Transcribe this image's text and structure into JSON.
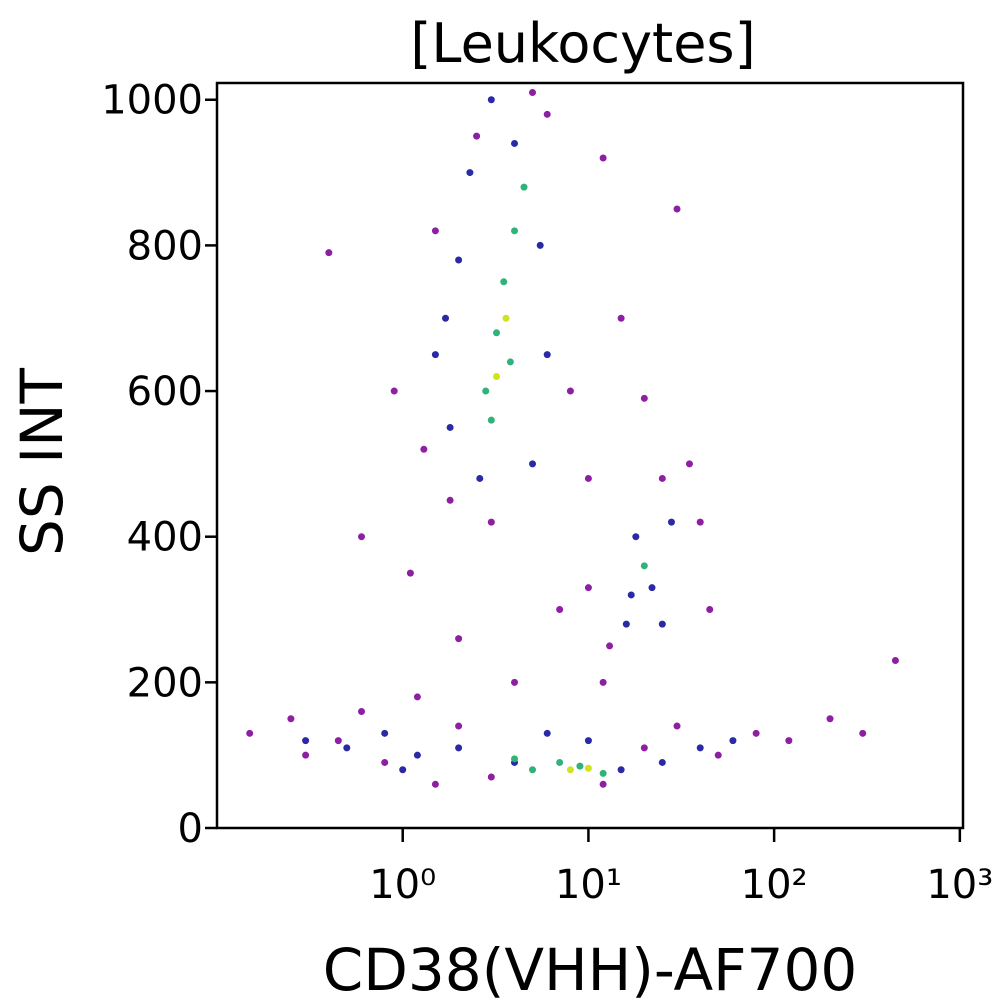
{
  "chart_data": {
    "type": "scatter",
    "title": "[Leukocytes]",
    "x_label": "CD38(VHH)-AF700",
    "y_label": "SS INT",
    "x_scale": "log",
    "xlim": [
      0.1,
      1040
    ],
    "ylim": [
      0,
      1023
    ],
    "xticks": [
      {
        "value": 1,
        "label": "10⁰"
      },
      {
        "value": 10,
        "label": "10¹"
      },
      {
        "value": 100,
        "label": "10²"
      },
      {
        "value": 1000,
        "label": "10³"
      }
    ],
    "yticks": [
      0,
      200,
      400,
      600,
      800,
      1000
    ],
    "series": [
      {
        "color": "#8e1fa3",
        "x": [
          0.15,
          0.25,
          0.3,
          0.45,
          0.6,
          0.8,
          1.2,
          1.5,
          2,
          3,
          12,
          20,
          30,
          50,
          80,
          120,
          200,
          300,
          450,
          0.6,
          0.9,
          1.3,
          1.5,
          1.8,
          2.5,
          6,
          8,
          10,
          12,
          30,
          7,
          2,
          4,
          12,
          25,
          40,
          45,
          10,
          13,
          35,
          0.4,
          1.1,
          15,
          20,
          3,
          5
        ],
        "y": [
          130,
          150,
          100,
          120,
          160,
          90,
          180,
          60,
          140,
          70,
          60,
          110,
          140,
          100,
          130,
          120,
          150,
          130,
          230,
          400,
          600,
          520,
          820,
          450,
          950,
          980,
          600,
          480,
          920,
          850,
          300,
          260,
          200,
          200,
          480,
          420,
          300,
          330,
          250,
          500,
          790,
          350,
          700,
          590,
          420,
          1010
        ]
      },
      {
        "color": "#2a2aa6",
        "x": [
          1.5,
          1.8,
          2,
          2.3,
          2.6,
          3,
          4,
          5,
          5.5,
          6,
          1.7,
          16,
          18,
          22,
          28,
          17,
          25,
          0.3,
          0.5,
          0.8,
          1.2,
          2,
          4,
          15,
          25,
          40,
          60,
          1,
          6,
          10
        ],
        "y": [
          650,
          550,
          780,
          900,
          480,
          1000,
          940,
          500,
          800,
          650,
          700,
          280,
          400,
          330,
          420,
          320,
          280,
          120,
          110,
          130,
          100,
          110,
          90,
          80,
          90,
          110,
          120,
          80,
          130,
          120
        ]
      },
      {
        "color": "#2fb37a",
        "x": [
          2.8,
          3.2,
          3.5,
          4,
          3,
          3.8,
          4.5,
          5,
          7,
          9,
          12,
          4,
          20
        ],
        "y": [
          600,
          680,
          750,
          820,
          560,
          640,
          880,
          80,
          90,
          85,
          75,
          95,
          360
        ]
      },
      {
        "color": "#cfe31f",
        "x": [
          3.2,
          3.6,
          8,
          10
        ],
        "y": [
          620,
          700,
          80,
          82
        ]
      }
    ]
  }
}
